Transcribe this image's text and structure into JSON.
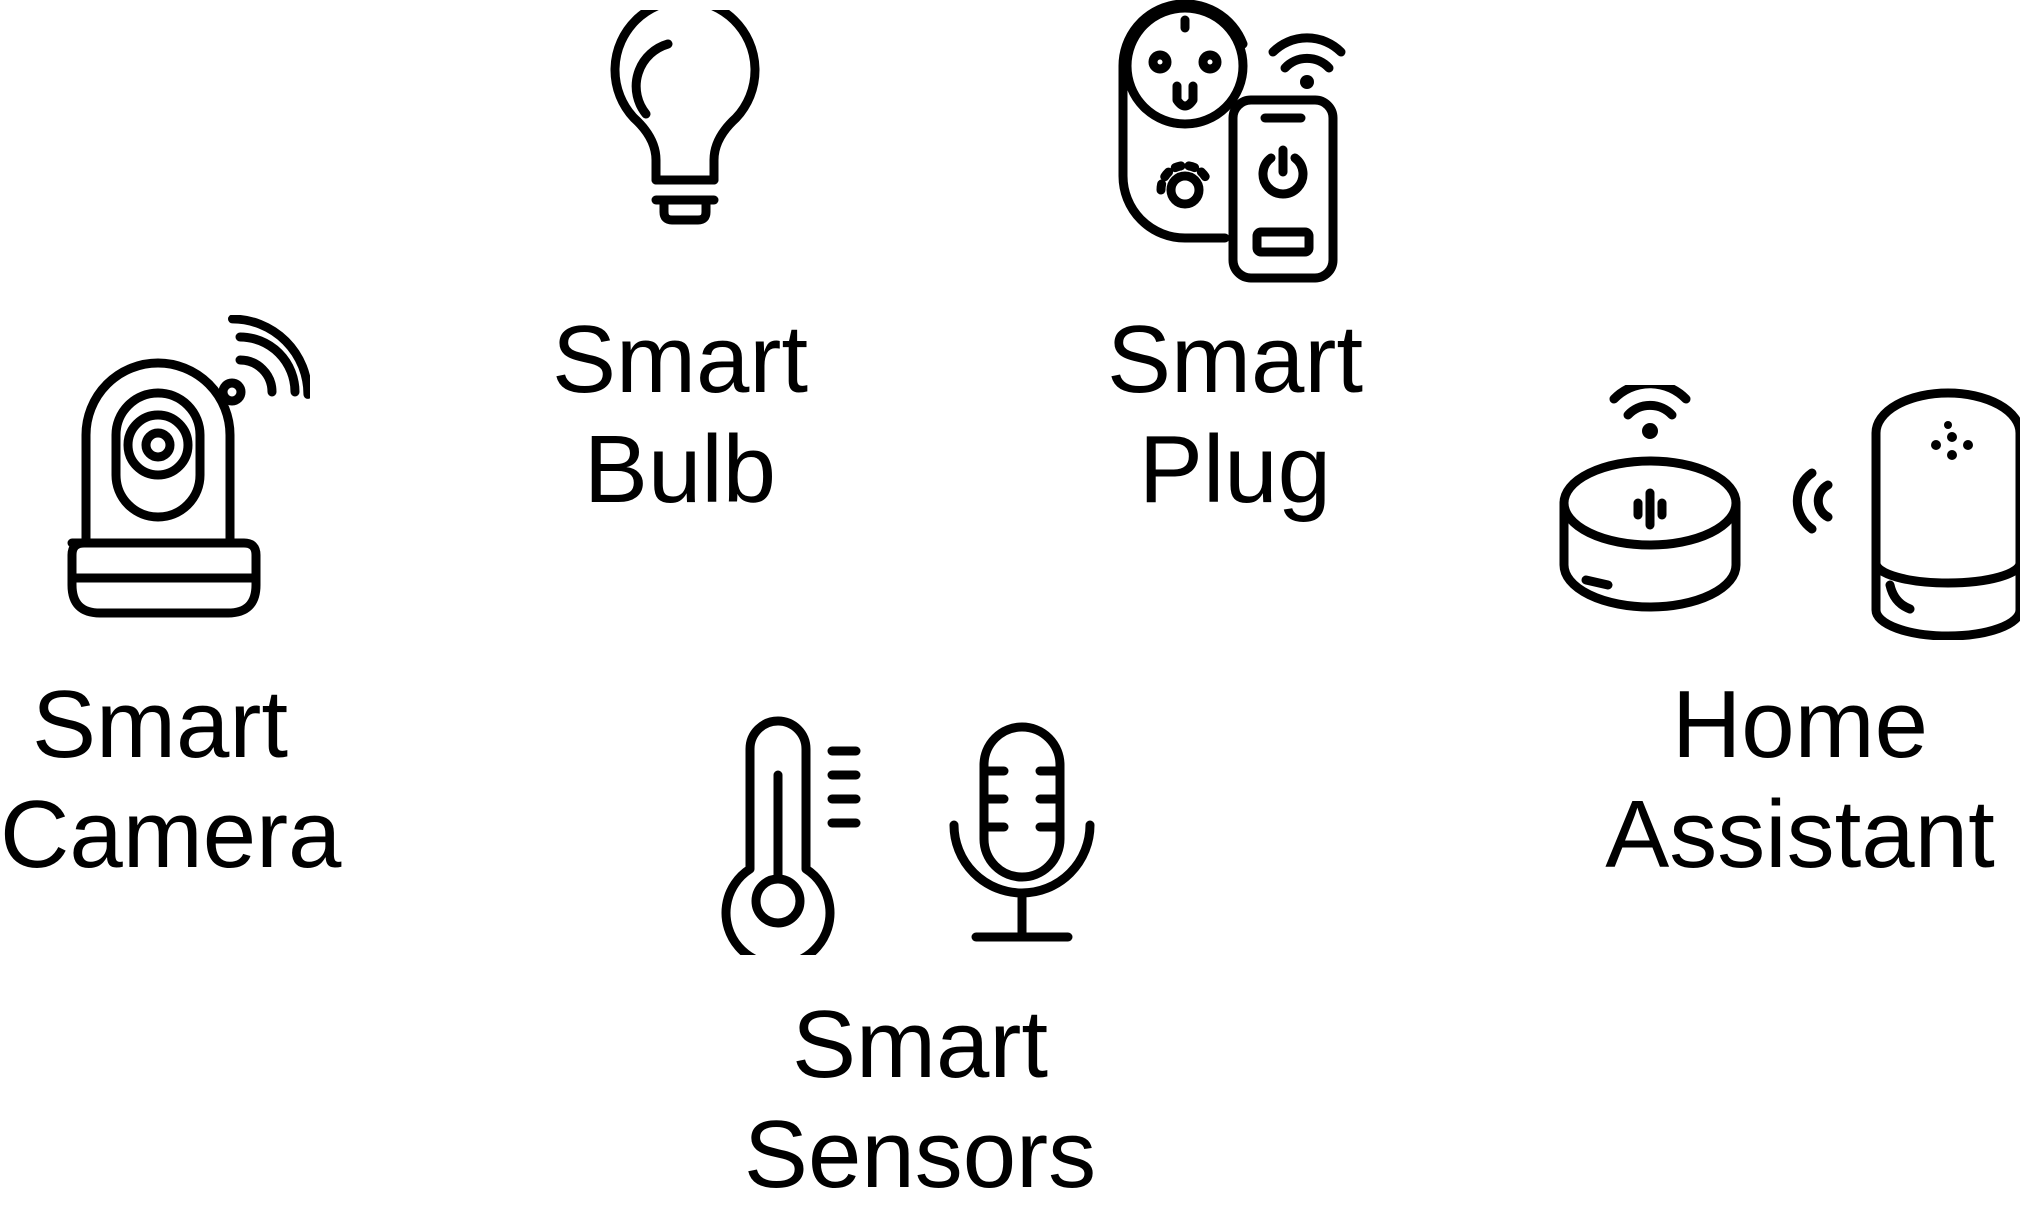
{
  "devices": {
    "camera": {
      "icon": "security-camera-icon",
      "line1": "Smart",
      "line2": "Camera"
    },
    "bulb": {
      "icon": "light-bulb-icon",
      "line1": "Smart",
      "line2": "Bulb"
    },
    "plug": {
      "icon": "smart-plug-icon",
      "line1": "Smart",
      "line2": "Plug"
    },
    "assistant": {
      "icon": "smart-speaker-icon",
      "line1": "Home",
      "line2": "Assistant"
    },
    "sensors": {
      "icon": "thermometer-microphone-icon",
      "line1": "Smart",
      "line2": "Sensors"
    }
  },
  "colors": {
    "stroke": "#000000",
    "background": "#ffffff"
  }
}
